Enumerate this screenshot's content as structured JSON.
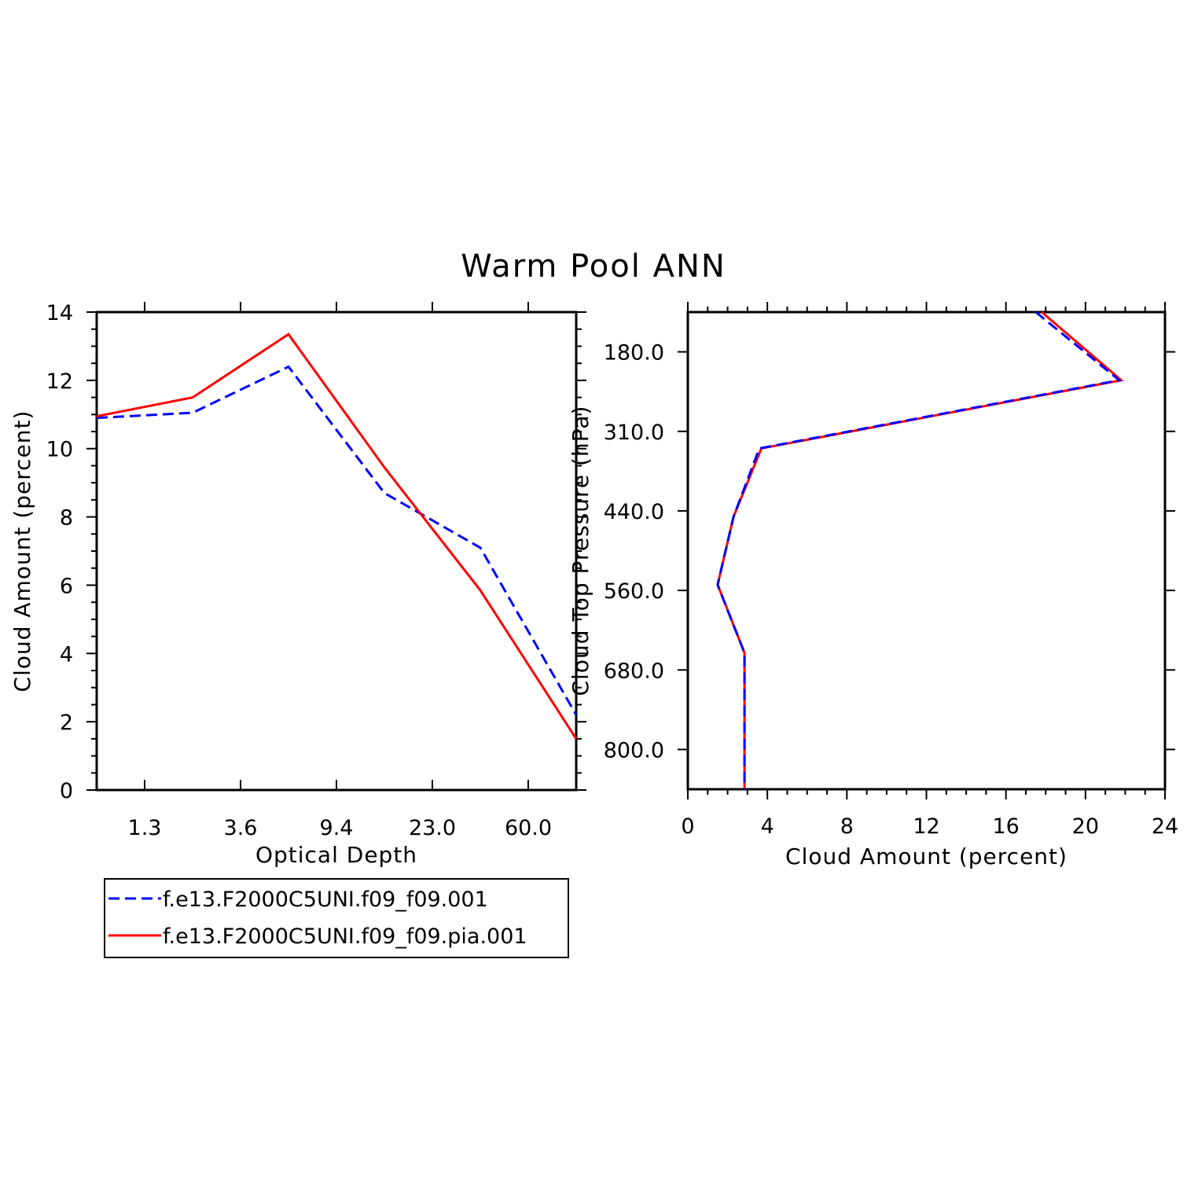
{
  "title": "Warm Pool ANN",
  "colors": {
    "series1": "#0000ff",
    "series2": "#ff0000",
    "axis": "#000000"
  },
  "legend": {
    "items": [
      {
        "label": "f.e13.F2000C5UNI.f09_f09.001",
        "color": "#0000ff",
        "dash": "dashed"
      },
      {
        "label": "f.e13.F2000C5UNI.f09_f09.pia.001",
        "color": "#ff0000",
        "dash": "solid"
      }
    ]
  },
  "chart_data": [
    {
      "type": "line",
      "xlabel": "Optical Depth",
      "ylabel": "Cloud Amount (percent)",
      "xtick_labels": [
        "1.3",
        "3.6",
        "9.4",
        "23.0",
        "60.0"
      ],
      "ylim": [
        0,
        14
      ],
      "yticks": [
        "0",
        "2",
        "4",
        "6",
        "8",
        "10",
        "12",
        "14"
      ],
      "x": [
        0,
        1,
        2,
        3,
        4,
        5
      ],
      "series": [
        {
          "name": "f.e13.F2000C5UNI.f09_f09.001",
          "color": "#0000ff",
          "dash": "dashed",
          "values": [
            10.9,
            11.05,
            12.4,
            8.7,
            7.1,
            2.2
          ]
        },
        {
          "name": "f.e13.F2000C5UNI.f09_f09.pia.001",
          "color": "#ff0000",
          "dash": "solid",
          "values": [
            10.95,
            11.5,
            13.35,
            9.45,
            5.85,
            1.5
          ]
        }
      ]
    },
    {
      "type": "line",
      "xlabel": "Cloud Amount (percent)",
      "ylabel": "Cloud Top Pressure (hPa)",
      "xlim": [
        0,
        24
      ],
      "xticks": [
        "0",
        "4",
        "8",
        "12",
        "16",
        "20",
        "24"
      ],
      "ytick_labels": [
        "180.0",
        "310.0",
        "440.0",
        "560.0",
        "680.0",
        "800.0"
      ],
      "levels": [
        0,
        1,
        2,
        3,
        4,
        5,
        6,
        7
      ],
      "series": [
        {
          "name": "f.e13.F2000C5UNI.f09_f09.001",
          "color": "#0000ff",
          "dash": "dashed",
          "values": [
            17.5,
            21.7,
            3.6,
            2.3,
            1.5,
            2.85,
            2.85,
            2.85
          ]
        },
        {
          "name": "f.e13.F2000C5UNI.f09_f09.pia.001",
          "color": "#ff0000",
          "dash": "solid",
          "values": [
            17.8,
            21.8,
            3.7,
            2.3,
            1.5,
            2.85,
            2.85,
            2.85
          ]
        }
      ]
    }
  ]
}
